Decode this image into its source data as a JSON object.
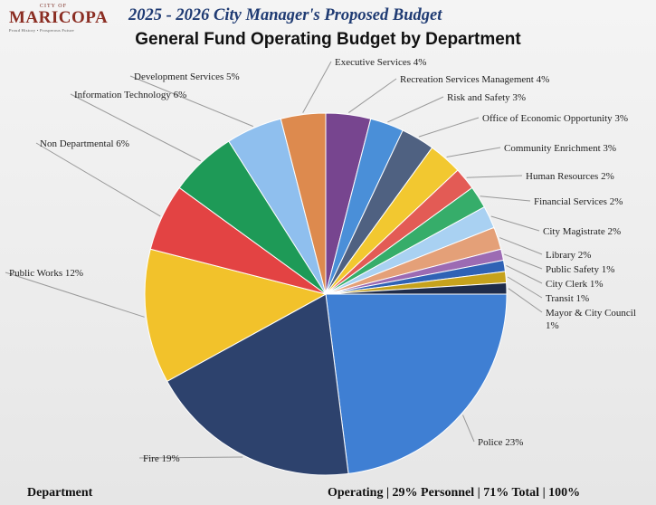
{
  "logo": {
    "city_of": "CITY OF",
    "name": "MARICOPA",
    "tagline": "Proud History • Prosperous Future"
  },
  "header": {
    "title": "2025 - 2026 City Manager's Proposed Budget"
  },
  "chart_data": {
    "type": "pie",
    "title": "General Fund Operating Budget by Department",
    "slices": [
      {
        "label": "Police",
        "value": 23,
        "text": "Police 23%",
        "color": "#3f7fd3"
      },
      {
        "label": "Fire",
        "value": 19,
        "text": "Fire 19%",
        "color": "#2d426d"
      },
      {
        "label": "Public Works",
        "value": 12,
        "text": "Public Works 12%",
        "color": "#f2c22b"
      },
      {
        "label": "Non Departmental",
        "value": 6,
        "text": "Non Departmental 6%",
        "color": "#e34343"
      },
      {
        "label": "Information Technology",
        "value": 6,
        "text": "Information Technology 6%",
        "color": "#1e9a57"
      },
      {
        "label": "Development Services",
        "value": 5,
        "text": "Development Services 5%",
        "color": "#8fbfee"
      },
      {
        "label": "Executive Services",
        "value": 4,
        "text": "Executive Services 4%",
        "color": "#dd8a4e"
      },
      {
        "label": "Recreation Services Management",
        "value": 4,
        "text": "Recreation Services Management 4%",
        "color": "#77458f"
      },
      {
        "label": "Risk and Safety",
        "value": 3,
        "text": "Risk and Safety 3%",
        "color": "#4a8fd8"
      },
      {
        "label": "Office of Economic Opportunity",
        "value": 3,
        "text": "Office of Economic Opportunity 3%",
        "color": "#4f6181"
      },
      {
        "label": "Community Enrichment",
        "value": 3,
        "text": "Community Enrichment 3%",
        "color": "#f2c830"
      },
      {
        "label": "Human Resources",
        "value": 2,
        "text": "Human Resources 2%",
        "color": "#e35b55"
      },
      {
        "label": "Financial Services",
        "value": 2,
        "text": "Financial Services 2%",
        "color": "#36ad6a"
      },
      {
        "label": "City Magistrate",
        "value": 2,
        "text": "City Magistrate 2%",
        "color": "#a9d1f2"
      },
      {
        "label": "Library",
        "value": 2,
        "text": "Library 2%",
        "color": "#e4a078"
      },
      {
        "label": "Public Safety",
        "value": 1,
        "text": "Public Safety 1%",
        "color": "#9c6bb3"
      },
      {
        "label": "City Clerk",
        "value": 1,
        "text": "City Clerk 1%",
        "color": "#2f62b5"
      },
      {
        "label": "Transit",
        "value": 1,
        "text": "Transit 1%",
        "color": "#c6a21c"
      },
      {
        "label": "Mayor & City Council",
        "value": 1,
        "text": "Mayor & City Council 1%",
        "color": "#1f2c4a"
      }
    ]
  },
  "footer": {
    "left": "Department",
    "right": "Operating | 29%   Personnel | 71%   Total | 100%"
  }
}
